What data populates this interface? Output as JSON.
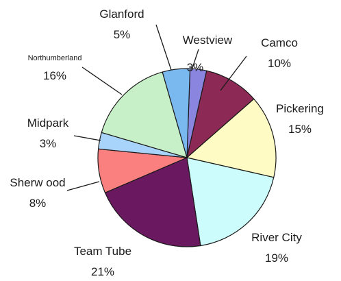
{
  "chart_data": {
    "type": "pie",
    "title": "",
    "colors": {
      "Westview": "#8a86e0",
      "Camco": "#8c2a55",
      "Pickering": "#fefcc4",
      "River City": "#ccfcfc",
      "Team Tube": "#6a1860",
      "Sherwood": "#fa8080",
      "Midpark": "#a8d4fc",
      "Northumberland": "#c8f0c8",
      "Glanford": "#7ab8f0"
    },
    "slices": [
      {
        "label": "Westview",
        "value": 3,
        "value_label": "3%"
      },
      {
        "label": "Camco",
        "value": 10,
        "value_label": "10%"
      },
      {
        "label": "Pickering",
        "value": 15,
        "value_label": "15%"
      },
      {
        "label": "River City",
        "value": 19,
        "value_label": "19%"
      },
      {
        "label": "Team Tube",
        "value": 21,
        "value_label": "21%"
      },
      {
        "label": "Sherw ood",
        "value": 8,
        "value_label": "8%"
      },
      {
        "label": "Midpark",
        "value": 3,
        "value_label": "3%"
      },
      {
        "label": "Northumberland",
        "value": 16,
        "value_label": "16%"
      },
      {
        "label": "Glanford",
        "value": 5,
        "value_label": "5%"
      }
    ],
    "legend": "none"
  }
}
